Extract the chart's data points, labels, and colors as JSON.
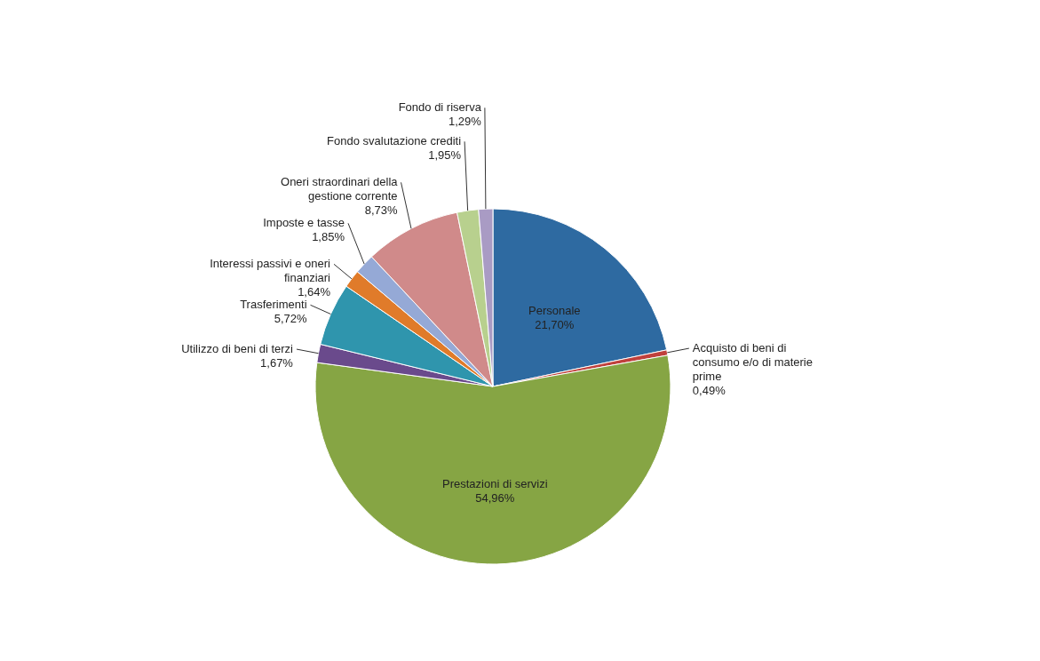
{
  "chart_data": {
    "type": "pie",
    "categories": [
      "Personale",
      "Acquisto di beni di consumo e/o di materie prime",
      "Prestazioni di servizi",
      "Utilizzo di beni di terzi",
      "Trasferimenti",
      "Interessi passivi e oneri finanziari",
      "Imposte e tasse",
      "Oneri straordinari della gestione corrente",
      "Fondo svalutazione crediti",
      "Fondo di riserva"
    ],
    "values": [
      21.7,
      0.49,
      54.96,
      1.67,
      5.72,
      1.64,
      1.85,
      8.73,
      1.95,
      1.29
    ],
    "value_labels": [
      "21,70%",
      "0,49%",
      "54,96%",
      "1,67%",
      "5,72%",
      "1,64%",
      "1,85%",
      "8,73%",
      "1,95%",
      "1,29%"
    ],
    "colors": [
      "#2e6aa1",
      "#c0403c",
      "#86a544",
      "#6a4a8c",
      "#2f95ad",
      "#e07b2a",
      "#95a9d6",
      "#d08a8a",
      "#b8d08e",
      "#a99bc4"
    ],
    "legend": false
  }
}
